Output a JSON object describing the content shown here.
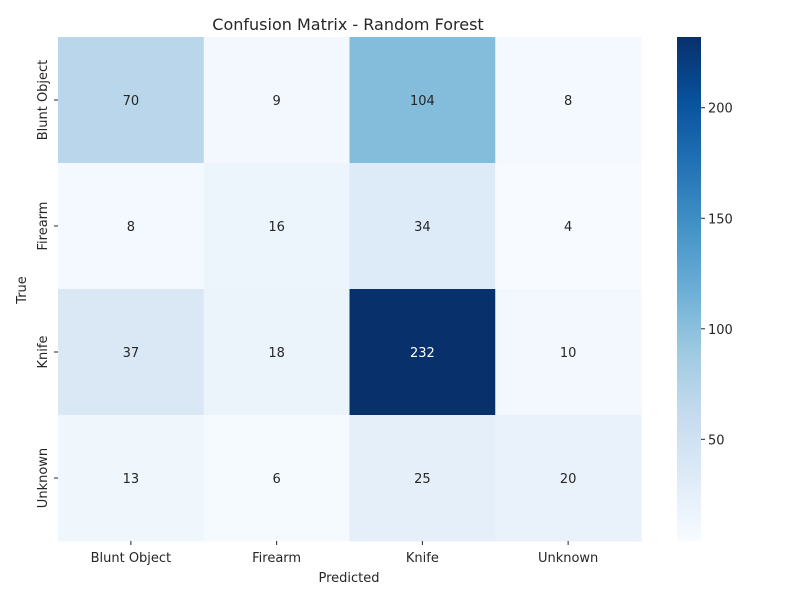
{
  "chart_data": {
    "type": "heatmap",
    "title": "Confusion Matrix - Random Forest",
    "xlabel": "Predicted",
    "ylabel": "True",
    "x_categories": [
      "Blunt Object",
      "Firearm",
      "Knife",
      "Unknown"
    ],
    "y_categories": [
      "Blunt Object",
      "Firearm",
      "Knife",
      "Unknown"
    ],
    "values": [
      [
        70,
        9,
        104,
        8
      ],
      [
        8,
        16,
        34,
        4
      ],
      [
        37,
        18,
        232,
        10
      ],
      [
        13,
        6,
        25,
        20
      ]
    ],
    "colormap": "Blues",
    "colorbar": {
      "range": [
        4,
        232
      ],
      "ticks": [
        50,
        100,
        150,
        200
      ]
    }
  }
}
